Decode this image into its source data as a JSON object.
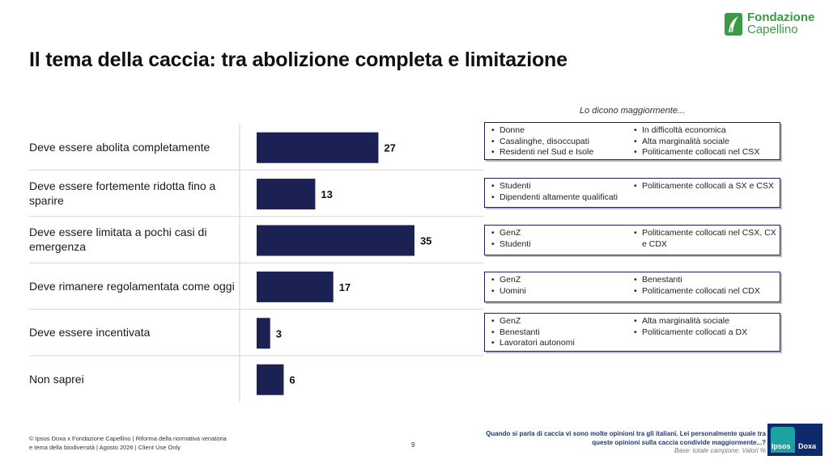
{
  "brand": {
    "name_line1": "Fondazione",
    "name_line2": "Capellino",
    "accent": "#3a9a46"
  },
  "title": "Il tema della caccia: tra abolizione completa e limitazione",
  "side_header": "Lo dicono maggiormente...",
  "chart_data": {
    "type": "bar",
    "orientation": "horizontal",
    "categories": [
      "Deve essere abolita completamente",
      "Deve essere fortemente ridotta fino a sparire",
      "Deve essere limitata a pochi casi di emergenza",
      "Deve rimanere regolamentata come oggi",
      "Deve essere incentivata",
      "Non saprei"
    ],
    "values": [
      27,
      13,
      35,
      17,
      3,
      6
    ],
    "bar_color": "#1c2154",
    "xlim": [
      0,
      35
    ],
    "grid": false
  },
  "notes": [
    {
      "left": [
        "Donne",
        "Casalinghe, disoccupati",
        "Residenti nel Sud e Isole"
      ],
      "right": [
        "In difficoltà economica",
        "Alta marginalità sociale",
        "Politicamente collocati nel CSX"
      ]
    },
    {
      "left": [
        "Studenti",
        "Dipendenti altamente qualificati"
      ],
      "right": [
        "Politicamente collocati a SX e CSX"
      ]
    },
    {
      "left": [
        "GenZ",
        "Studenti"
      ],
      "right": [
        "Politicamente collocati nel CSX, CX e CDX"
      ]
    },
    {
      "left": [
        "GenZ",
        "Uomini"
      ],
      "right": [
        "Benestanti",
        "Politicamente collocati nel CDX"
      ]
    },
    {
      "left": [
        "GenZ",
        "Benestanti",
        "Lavoratori autonomi"
      ],
      "right": [
        "Alta marginalità sociale",
        "Politicamente collocati a DX"
      ]
    }
  ],
  "footer": {
    "copyright": "© Ipsos Doxa x Fondazione Capellino | Riforma della normativa venatoria e tema della biodiversità | Agosto 2026 | Client Use Only",
    "page": "9",
    "question": "Quando si parla di caccia vi sono molte opinioni tra gli italiani. Lei personalmente quale tra queste opinioni sulla caccia condivide maggiormente...?",
    "base": "Base: totale campione. Valori %",
    "ipsos_label": "Ipsos",
    "doxa_label": "Doxa"
  }
}
